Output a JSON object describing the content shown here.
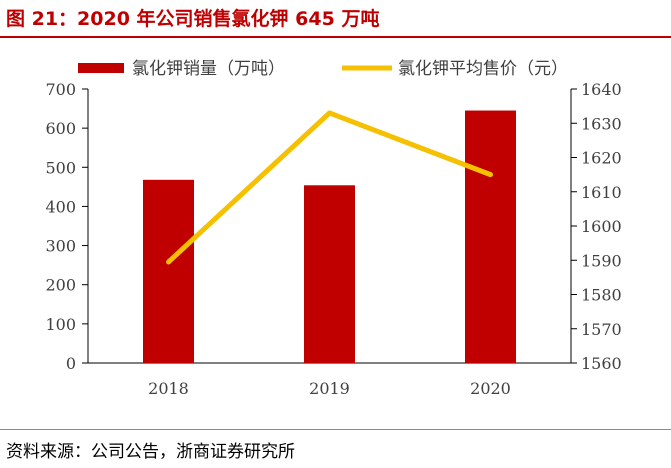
{
  "header": {
    "title": "图 21：2020 年公司销售氯化钾 645 万吨"
  },
  "footer": {
    "source": "资料来源：公司公告，浙商证券研究所"
  },
  "chart_data": {
    "type": "bar+line",
    "categories": [
      "2018",
      "2019",
      "2020"
    ],
    "series": [
      {
        "name": "氯化钾销量（万吨）",
        "type": "bar",
        "axis": "left",
        "color": "#c00000",
        "values": [
          468,
          454,
          645
        ]
      },
      {
        "name": "氯化钾平均售价（元）",
        "type": "line",
        "axis": "right",
        "color": "#f5c000",
        "values": [
          1589.5,
          1633,
          1615
        ]
      }
    ],
    "y_left": {
      "min": 0,
      "max": 700,
      "ticks": [
        "0",
        "100",
        "200",
        "300",
        "400",
        "500",
        "600",
        "700"
      ]
    },
    "y_right": {
      "min": 1560,
      "max": 1640,
      "ticks": [
        "1560",
        "1570",
        "1580",
        "1590",
        "1600",
        "1610",
        "1620",
        "1630",
        "1640"
      ]
    },
    "legend_position": "top",
    "grid": false
  }
}
